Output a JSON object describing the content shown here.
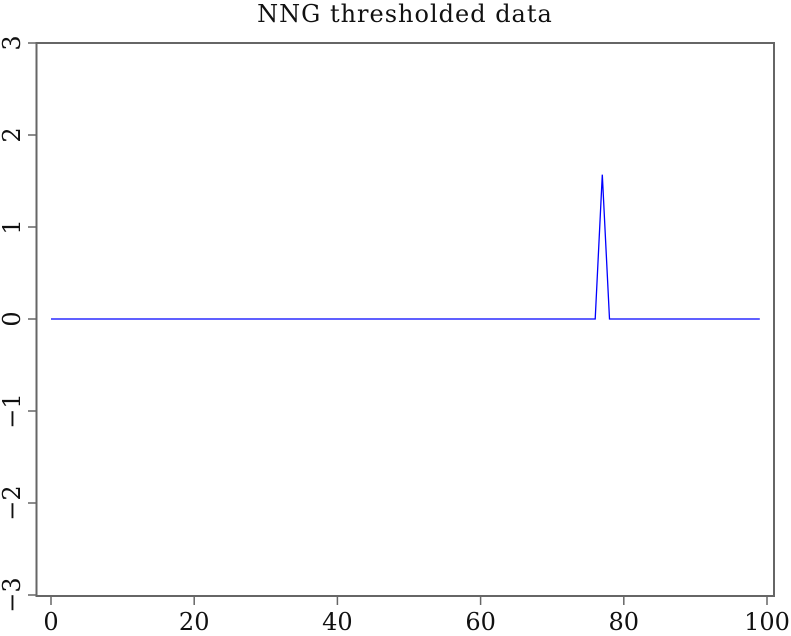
{
  "chart_data": {
    "type": "line",
    "title": "NNG thresholded data",
    "xlabel": "",
    "ylabel": "",
    "xlim": [
      -2,
      103
    ],
    "ylim": [
      -3,
      3
    ],
    "xticks": [
      0,
      20,
      40,
      60,
      80,
      100
    ],
    "yticks": [
      -3,
      -2,
      -1,
      0,
      1,
      2,
      3
    ],
    "grid": false,
    "series": [
      {
        "color": "#0000ff",
        "x_start": 0,
        "x_end": 99,
        "nonzero": {
          "77": 1.57
        }
      }
    ]
  },
  "colors": {
    "axis": "#666666",
    "line": "#0000ff"
  }
}
